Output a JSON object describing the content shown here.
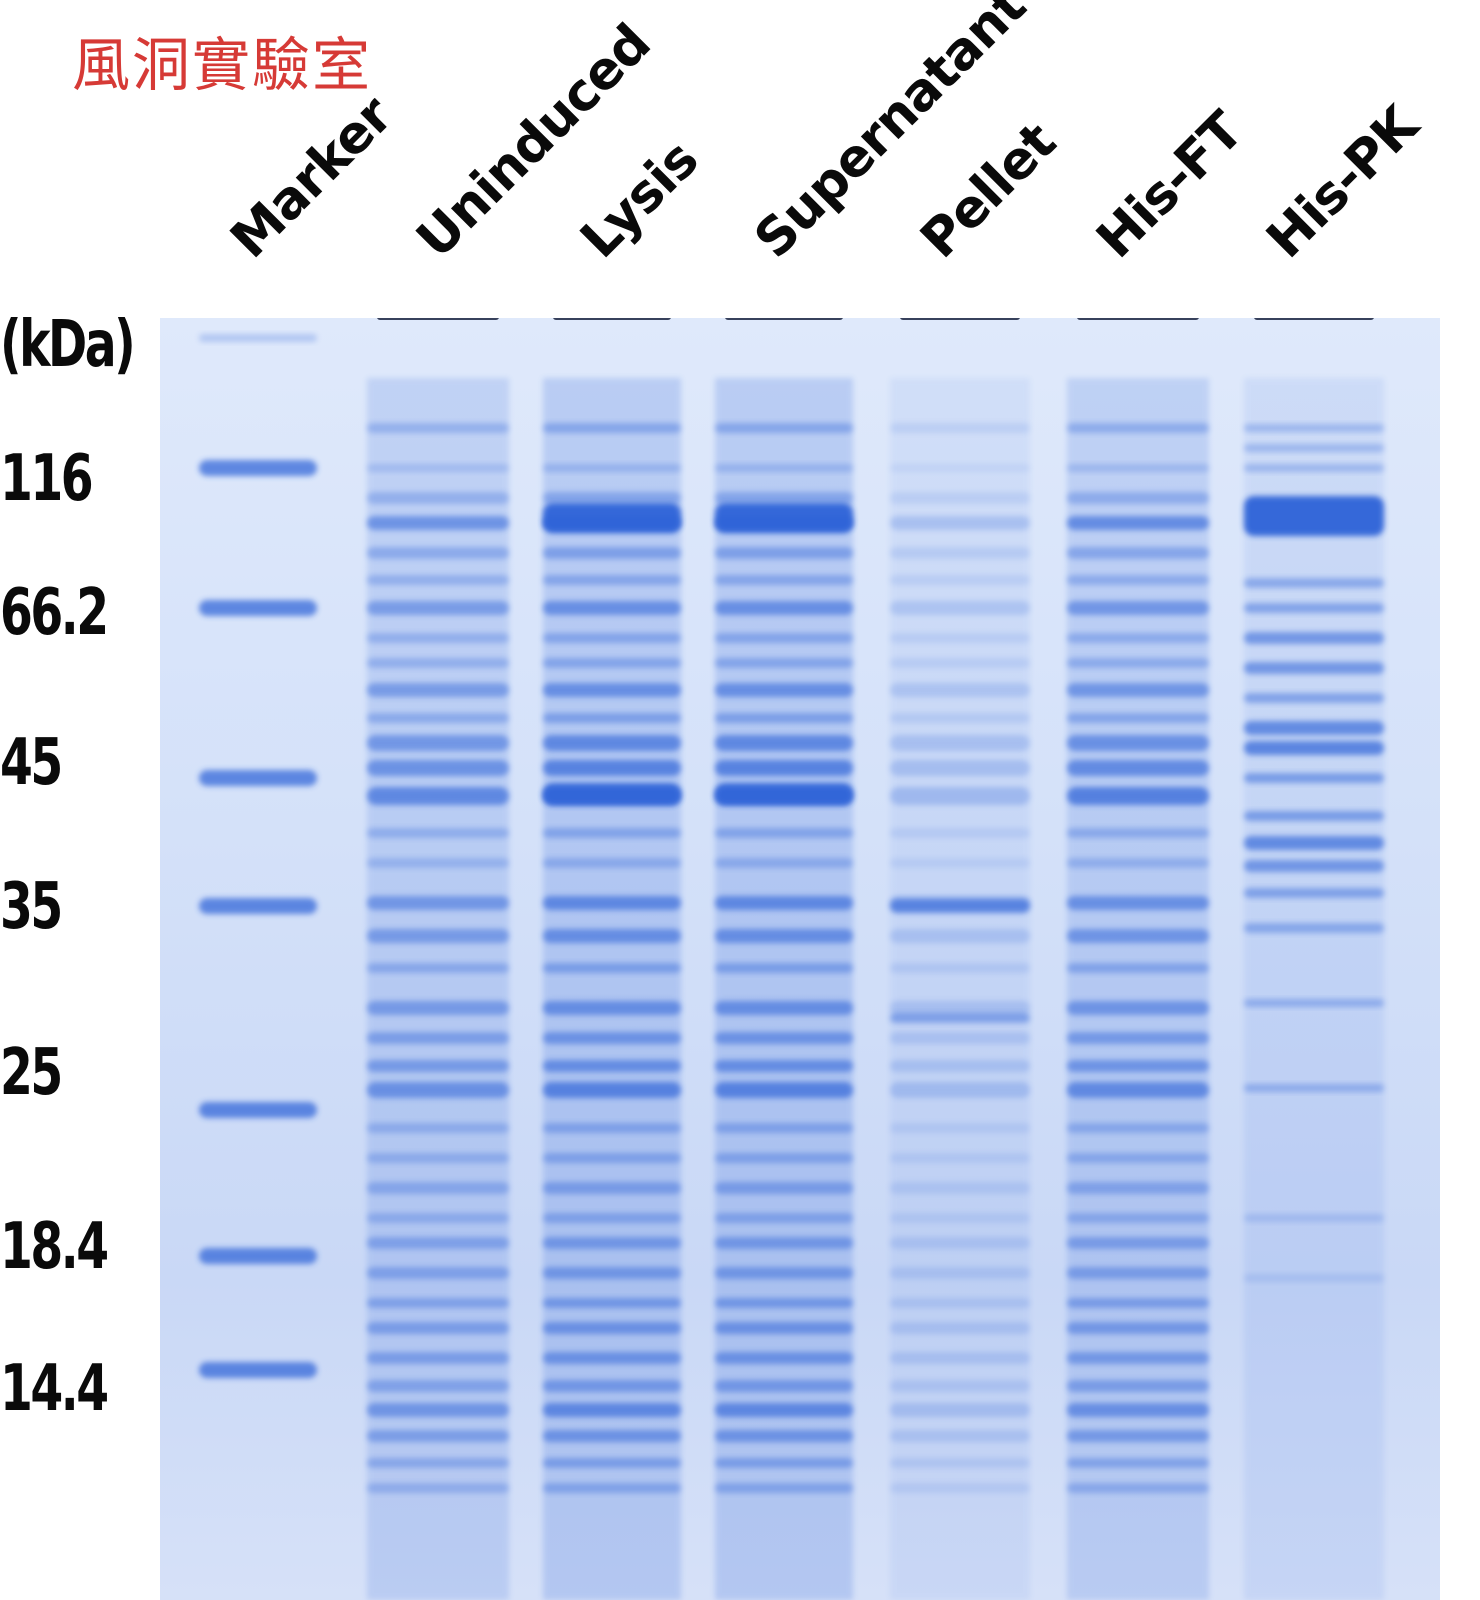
{
  "watermark": "風洞實驗室",
  "unit_label": "(kDa)",
  "lanes": [
    {
      "label": "Marker"
    },
    {
      "label": "Uninduced"
    },
    {
      "label": "Lysis"
    },
    {
      "label": "Supernatant"
    },
    {
      "label": "Pellet"
    },
    {
      "label": "His-FT"
    },
    {
      "label": "His-PK"
    }
  ],
  "marker_sizes_kDa": [
    "116",
    "66.2",
    "45",
    "35",
    "25",
    "18.4",
    "14.4"
  ],
  "colors": {
    "gel_background": "#d4e1f9",
    "band": "#2f63d8",
    "watermark": "#d63a36",
    "text": "#0a0a0a"
  }
}
